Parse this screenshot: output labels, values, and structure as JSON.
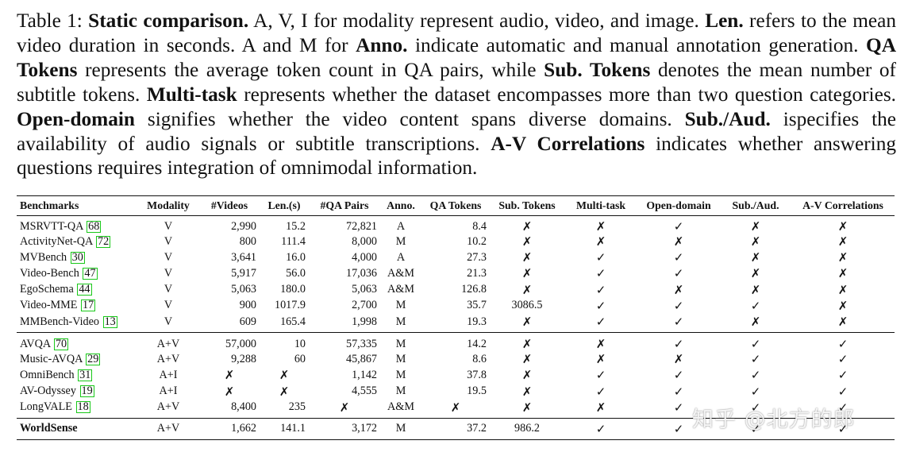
{
  "caption": {
    "label": "Table 1: ",
    "segments": [
      {
        "b": true,
        "t": "Static comparison."
      },
      {
        "b": false,
        "t": " A, V, I for modality represent audio, video, and image. "
      },
      {
        "b": true,
        "t": "Len."
      },
      {
        "b": false,
        "t": " refers to the mean video duration in seconds. A and M for "
      },
      {
        "b": true,
        "t": "Anno."
      },
      {
        "b": false,
        "t": " indicate automatic and manual annotation generation. "
      },
      {
        "b": true,
        "t": "QA Tokens"
      },
      {
        "b": false,
        "t": " represents the average token count in QA pairs, while "
      },
      {
        "b": true,
        "t": "Sub. Tokens"
      },
      {
        "b": false,
        "t": " denotes the mean number of subtitle tokens. "
      },
      {
        "b": true,
        "t": "Multi-task"
      },
      {
        "b": false,
        "t": " represents whether the dataset encompasses more than two question categories. "
      },
      {
        "b": true,
        "t": "Open-domain"
      },
      {
        "b": false,
        "t": " signifies whether the video content spans diverse domains. "
      },
      {
        "b": true,
        "t": "Sub./Aud."
      },
      {
        "b": false,
        "t": " ispecifies the availability of audio signals or subtitle transcriptions. "
      },
      {
        "b": true,
        "t": "A-V Correlations"
      },
      {
        "b": false,
        "t": " indicates whether answering questions requires integration of omnimodal information."
      }
    ]
  },
  "table": {
    "headers": [
      "Benchmarks",
      "Modality",
      "#Videos",
      "Len.(s)",
      "#QA Pairs",
      "Anno.",
      "QA Tokens",
      "Sub. Tokens",
      "Multi-task",
      "Open-domain",
      "Sub./Aud.",
      "A-V Correlations"
    ],
    "groups": [
      [
        {
          "name": "MSRVTT-QA",
          "ref": "68",
          "cells": [
            "V",
            "2,990",
            "15.2",
            "72,821",
            "A",
            "8.4",
            "✗",
            "✗",
            "✓",
            "✗",
            "✗"
          ]
        },
        {
          "name": "ActivityNet-QA",
          "ref": "72",
          "cells": [
            "V",
            "800",
            "111.4",
            "8,000",
            "M",
            "10.2",
            "✗",
            "✗",
            "✗",
            "✗",
            "✗"
          ]
        },
        {
          "name": "MVBench",
          "ref": "30",
          "cells": [
            "V",
            "3,641",
            "16.0",
            "4,000",
            "A",
            "27.3",
            "✗",
            "✓",
            "✓",
            "✗",
            "✗"
          ]
        },
        {
          "name": "Video-Bench",
          "ref": "47",
          "cells": [
            "V",
            "5,917",
            "56.0",
            "17,036",
            "A&M",
            "21.3",
            "✗",
            "✓",
            "✓",
            "✗",
            "✗"
          ]
        },
        {
          "name": "EgoSchema",
          "ref": "44",
          "cells": [
            "V",
            "5,063",
            "180.0",
            "5,063",
            "A&M",
            "126.8",
            "✗",
            "✓",
            "✗",
            "✗",
            "✗"
          ]
        },
        {
          "name": "Video-MME",
          "ref": "17",
          "cells": [
            "V",
            "900",
            "1017.9",
            "2,700",
            "M",
            "35.7",
            "3086.5",
            "✓",
            "✓",
            "✓",
            "✗"
          ]
        },
        {
          "name": "MMBench-Video",
          "ref": "13",
          "cells": [
            "V",
            "609",
            "165.4",
            "1,998",
            "M",
            "19.3",
            "✗",
            "✓",
            "✓",
            "✗",
            "✗"
          ]
        }
      ],
      [
        {
          "name": "AVQA",
          "ref": "70",
          "cells": [
            "A+V",
            "57,000",
            "10",
            "57,335",
            "M",
            "14.2",
            "✗",
            "✗",
            "✓",
            "✓",
            "✓"
          ]
        },
        {
          "name": "Music-AVQA",
          "ref": "29",
          "cells": [
            "A+V",
            "9,288",
            "60",
            "45,867",
            "M",
            "8.6",
            "✗",
            "✗",
            "✗",
            "✓",
            "✓"
          ]
        },
        {
          "name": "OmniBench",
          "ref": "31",
          "cells": [
            "A+I",
            "✗",
            "✗",
            "1,142",
            "M",
            "37.8",
            "✗",
            "✓",
            "✓",
            "✓",
            "✓"
          ]
        },
        {
          "name": "AV-Odyssey",
          "ref": "19",
          "cells": [
            "A+I",
            "✗",
            "✗",
            "4,555",
            "M",
            "19.5",
            "✗",
            "✓",
            "✓",
            "✓",
            "✓"
          ]
        },
        {
          "name": "LongVALE",
          "ref": "18",
          "cells": [
            "A+V",
            "8,400",
            "235",
            "✗",
            "A&M",
            "✗",
            "✗",
            "✗",
            "✓",
            "✓",
            "✓"
          ]
        }
      ],
      [
        {
          "name": "WorldSense",
          "ref": "",
          "bold": true,
          "cells": [
            "A+V",
            "1,662",
            "141.1",
            "3,172",
            "M",
            "37.2",
            "986.2",
            "✓",
            "✓",
            "✓",
            "✓"
          ]
        }
      ]
    ]
  },
  "watermark": "知乎 @北方的郎"
}
